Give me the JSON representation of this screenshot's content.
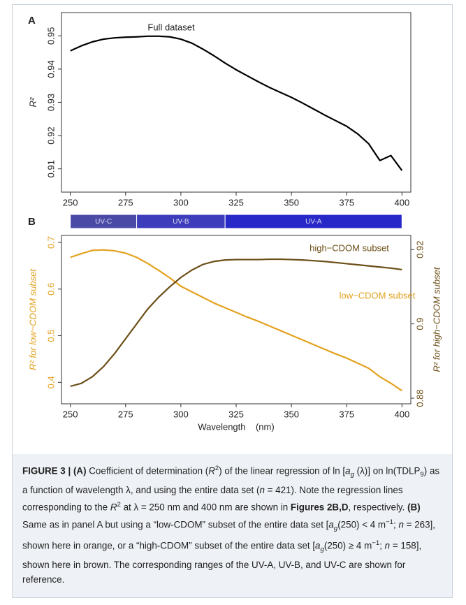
{
  "chart_data": [
    {
      "type": "line",
      "panel": "A",
      "ylabel": "R²",
      "annotations": [
        "Full dataset"
      ],
      "x": [
        250,
        255,
        260,
        265,
        270,
        275,
        280,
        285,
        290,
        295,
        300,
        305,
        310,
        315,
        320,
        325,
        330,
        335,
        340,
        345,
        350,
        355,
        360,
        365,
        370,
        375,
        380,
        385,
        390,
        395,
        400
      ],
      "series": [
        {
          "name": "Full dataset",
          "color": "#000000",
          "values": [
            0.9455,
            0.947,
            0.9482,
            0.949,
            0.9494,
            0.9496,
            0.9497,
            0.9499,
            0.9499,
            0.9497,
            0.949,
            0.9478,
            0.946,
            0.944,
            0.9418,
            0.9398,
            0.938,
            0.9362,
            0.9345,
            0.933,
            0.9315,
            0.9298,
            0.928,
            0.9262,
            0.9245,
            0.9228,
            0.9205,
            0.9175,
            0.9125,
            0.914,
            0.9095
          ]
        }
      ],
      "xlim": [
        246,
        404
      ],
      "xticks": [
        250,
        275,
        300,
        325,
        350,
        375,
        400
      ],
      "ylim": [
        0.903,
        0.957
      ],
      "yticks": [
        0.91,
        0.92,
        0.93,
        0.94,
        0.95
      ]
    },
    {
      "type": "line",
      "panel": "B",
      "xlabel": "Wavelength    (nm)",
      "ylabel": "R² for  low−CDOM subset",
      "y2label": "R² for  high−CDOM subset",
      "annotations": [
        "high−CDOM subset",
        "low−CDOM subset"
      ],
      "x": [
        250,
        255,
        260,
        265,
        270,
        275,
        280,
        285,
        290,
        295,
        300,
        305,
        310,
        315,
        320,
        325,
        330,
        335,
        340,
        345,
        350,
        355,
        360,
        365,
        370,
        375,
        380,
        385,
        390,
        395,
        400
      ],
      "series": [
        {
          "name": "low−CDOM subset",
          "color": "#e3a21f",
          "values": [
            0.668,
            0.676,
            0.683,
            0.684,
            0.682,
            0.677,
            0.668,
            0.655,
            0.64,
            0.624,
            0.606,
            0.594,
            0.582,
            0.57,
            0.56,
            0.55,
            0.54,
            0.531,
            0.521,
            0.511,
            0.501,
            0.491,
            0.481,
            0.471,
            0.461,
            0.452,
            0.441,
            0.43,
            0.412,
            0.398,
            0.382
          ]
        },
        {
          "name": "high−CDOM subset",
          "color": "#6b4e16",
          "axis": "y2",
          "values": [
            0.8832,
            0.884,
            0.8858,
            0.8885,
            0.892,
            0.896,
            0.9,
            0.904,
            0.9072,
            0.91,
            0.9125,
            0.9145,
            0.916,
            0.9168,
            0.9172,
            0.9173,
            0.9173,
            0.9173,
            0.9174,
            0.9174,
            0.9173,
            0.9172,
            0.917,
            0.9168,
            0.9165,
            0.9162,
            0.9159,
            0.9156,
            0.9153,
            0.915,
            0.9146
          ]
        }
      ],
      "xlim": [
        246,
        404
      ],
      "xticks": [
        250,
        275,
        300,
        325,
        350,
        375,
        400
      ],
      "ylim": [
        0.354,
        0.715
      ],
      "yticks": [
        0.4,
        0.5,
        0.6,
        0.7
      ],
      "y2lim": [
        0.8785,
        0.9238
      ],
      "y2ticks": [
        0.88,
        0.9,
        0.92
      ],
      "bands": [
        {
          "label": "UV-C",
          "start": 250,
          "end": 280,
          "color": "#4a4aa6"
        },
        {
          "label": "UV-B",
          "start": 280,
          "end": 320,
          "color": "#3d3dbb"
        },
        {
          "label": "UV-A",
          "start": 320,
          "end": 400,
          "color": "#2828c8"
        }
      ]
    }
  ],
  "caption": [
    "FIGURE 3 | (A)",
    " Coefficient of determination (",
    "R",
    "2",
    ") of the linear regression of ln [",
    "a",
    "g",
    " (λ)] on ln(TDLP",
    "9",
    ") as a function of wavelength λ, and using the entire data set (",
    "n",
    " = 421). Note the regression lines corresponding to the ",
    "R",
    "2",
    " at λ = 250 nm and 400 nm are shown in ",
    "Figures 2B,D",
    ", respectively. ",
    "(B)",
    " Same as in panel A but using a “low-CDOM” subset of the entire data set [",
    "a",
    "g",
    "(250) < 4 m",
    "−1",
    "; ",
    "n",
    " = 263], shown here in orange, or a “high-CDOM” subset of the entire data set [",
    "a",
    "g",
    "(250) ≥ 4 m",
    "−1",
    "; ",
    "n",
    " = 158], shown here in brown. The corresponding ranges of the UV-A, UV-B, and UV-C are shown for reference."
  ]
}
